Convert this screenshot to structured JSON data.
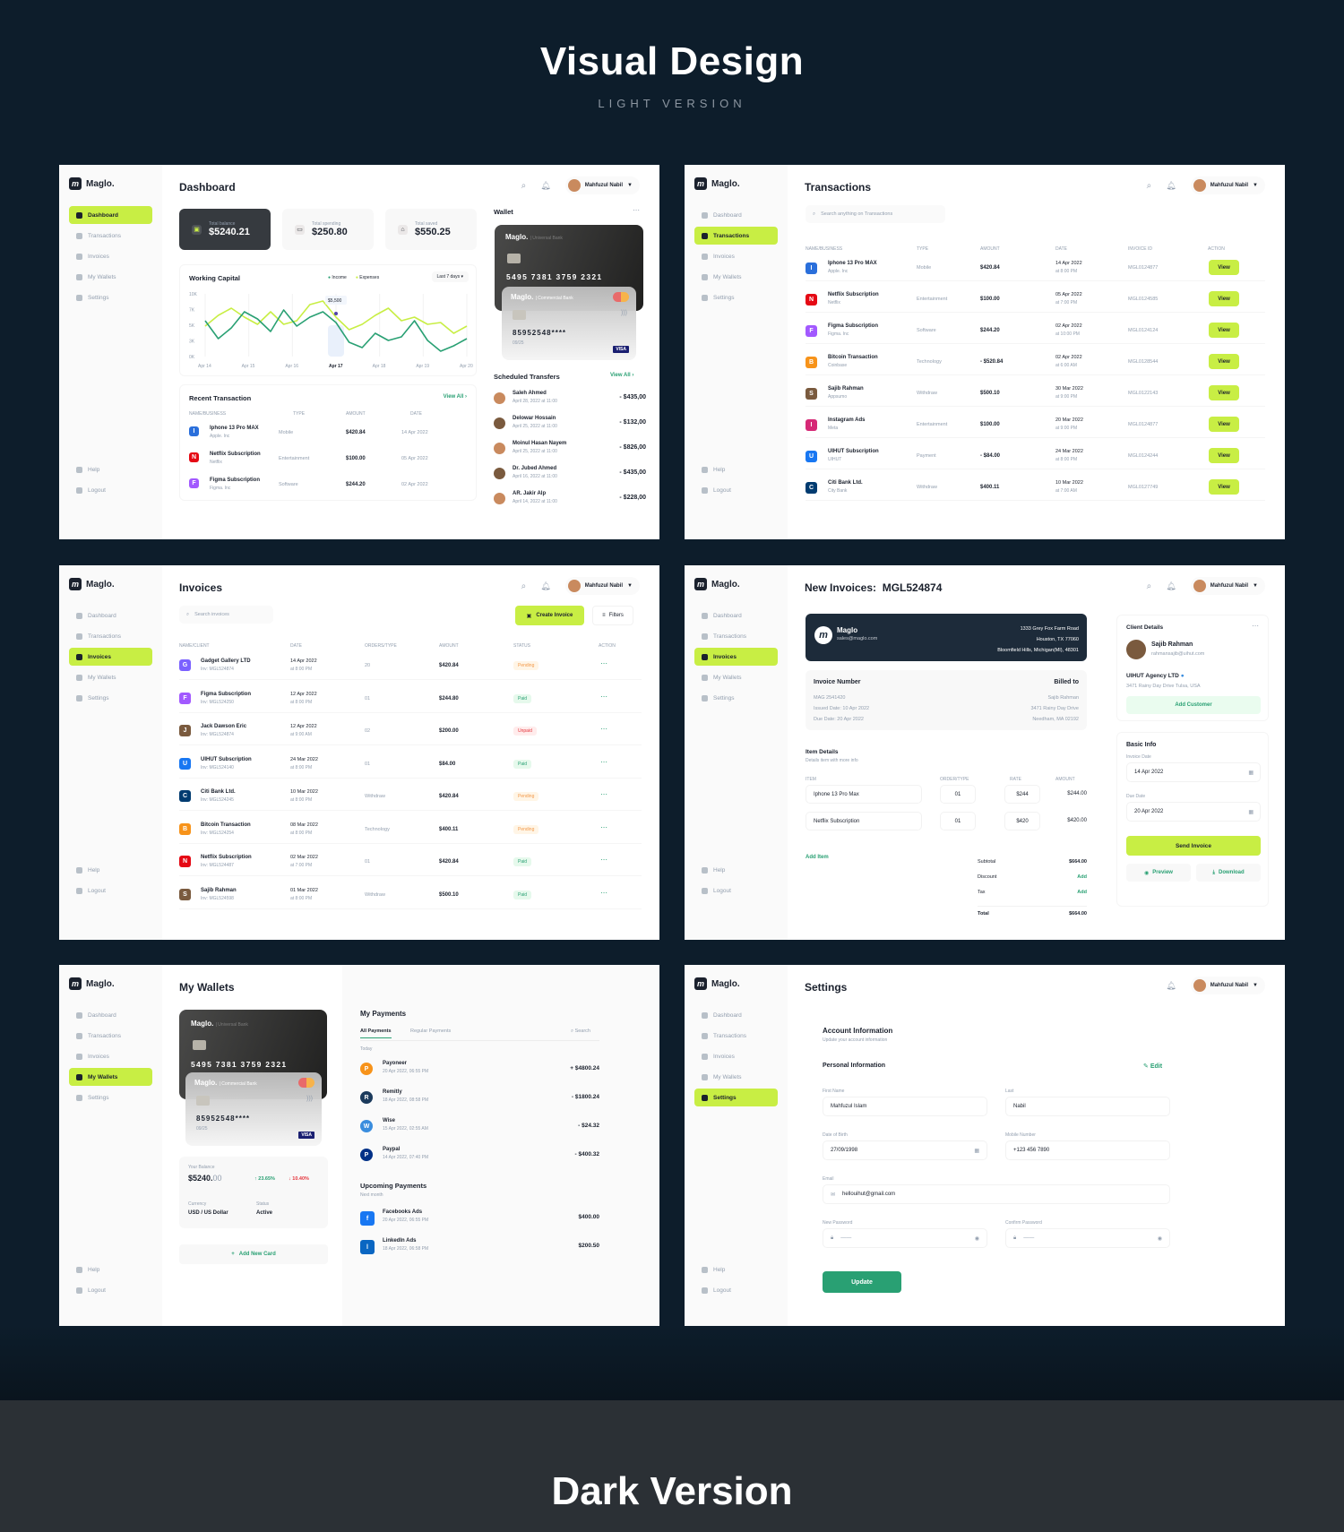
{
  "hero": {
    "title": "Visual Design",
    "subtitle": "LIGHT VERSION",
    "dark_title": "Dark Version"
  },
  "common": {
    "brand": "Maglo.",
    "brand_mark": "m",
    "user": "Mahfuzul Nabil",
    "nav": [
      "Dashboard",
      "Transactions",
      "Invoices",
      "My Wallets",
      "Settings"
    ],
    "help": "Help",
    "logout": "Logout"
  },
  "dashboard": {
    "title": "Dashboard",
    "stats": [
      {
        "label": "Total balance",
        "value": "$5240.21"
      },
      {
        "label": "Total spending",
        "value": "$250.80"
      },
      {
        "label": "Total saved",
        "value": "$550.25"
      }
    ],
    "wc_title": "Working Capital",
    "legend_income": "Income",
    "legend_expenses": "Expenses",
    "range": "Last 7 days",
    "y_ticks": [
      "10K",
      "7K",
      "5K",
      "3K",
      "0K"
    ],
    "x_ticks": [
      "Apr 14",
      "Apr 15",
      "Apr 16",
      "Apr 17",
      "Apr 18",
      "Apr 19",
      "Apr 20"
    ],
    "tooltip": "$5,500",
    "wallet_title": "Wallet",
    "card1_brand": "Maglo.",
    "card1_bank": "Universal Bank",
    "card1_number": "5495 7381 3759 2321",
    "card2_brand": "Maglo.",
    "card2_bank": "Commercial Bank",
    "card2_number": "85952548****",
    "card2_exp": "09/25",
    "card2_visa": "VISA",
    "recent_title": "Recent Transaction",
    "view_all": "View All",
    "recent_cols": [
      "NAME/BUSINESS",
      "TYPE",
      "AMOUNT",
      "DATE"
    ],
    "recent": [
      {
        "name": "Iphone 13 Pro MAX",
        "sub": "Apple. Inc",
        "type": "Mobile",
        "amount": "$420.84",
        "date": "14 Apr 2022"
      },
      {
        "name": "Netflix Subscription",
        "sub": "Netflix",
        "type": "Entertainment",
        "amount": "$100.00",
        "date": "05 Apr 2022"
      },
      {
        "name": "Figma Subscription",
        "sub": "Figma. Inc",
        "type": "Software",
        "amount": "$244.20",
        "date": "02 Apr 2022"
      }
    ],
    "sched_title": "Scheduled Transfers",
    "sched_view": "View All",
    "sched": [
      {
        "name": "Saleh Ahmed",
        "date": "April 28, 2022 at 11:00",
        "amount": "- $435,00"
      },
      {
        "name": "Delowar Hossain",
        "date": "April 25, 2022 at 11:00",
        "amount": "- $132,00"
      },
      {
        "name": "Moinul Hasan Nayem",
        "date": "April 25, 2022 at 11:00",
        "amount": "- $826,00"
      },
      {
        "name": "Dr. Jubed Ahmed",
        "date": "April 16, 2022 at 11:00",
        "amount": "- $435,00"
      },
      {
        "name": "AR. Jakir Alp",
        "date": "April 14, 2022 at 11:00",
        "amount": "- $228,00"
      }
    ]
  },
  "transactions": {
    "title": "Transactions",
    "search_placeholder": "Search anything on Transactions",
    "cols": [
      "NAME/BUSINESS",
      "TYPE",
      "AMOUNT",
      "DATE",
      "INVOICE ID",
      "ACTION"
    ],
    "view": "View",
    "rows": [
      {
        "name": "Iphone 13 Pro MAX",
        "sub": "Apple. Inc",
        "type": "Mobile",
        "amount": "$420.84",
        "date": "14 Apr 2022",
        "time": "at 8:00 PM",
        "id": "MGL0124877"
      },
      {
        "name": "Netflix Subscription",
        "sub": "Netflix",
        "type": "Entertainment",
        "amount": "$100.00",
        "date": "05 Apr 2022",
        "time": "at 7:00 PM",
        "id": "MGL0124585"
      },
      {
        "name": "Figma Subscription",
        "sub": "Figma. Inc",
        "type": "Software",
        "amount": "$244.20",
        "date": "02 Apr 2022",
        "time": "at 10:00 PM",
        "id": "MGL0124124"
      },
      {
        "name": "Bitcoin Transaction",
        "sub": "Coinbase",
        "type": "Technology",
        "amount": "- $520.84",
        "date": "02 Apr 2022",
        "time": "at 6:00 AM",
        "id": "MGL0128544"
      },
      {
        "name": "Sajib Rahman",
        "sub": "Appsumo",
        "type": "Withdraw",
        "amount": "$500.10",
        "date": "30 Mar 2022",
        "time": "at 9:00 PM",
        "id": "MGL0122143"
      },
      {
        "name": "Instagram Ads",
        "sub": "Meta",
        "type": "Entertainment",
        "amount": "$100.00",
        "date": "20 Mar 2022",
        "time": "at 9:00 PM",
        "id": "MGL0124877"
      },
      {
        "name": "UIHUT Subscription",
        "sub": "UIHUT",
        "type": "Payment",
        "amount": "- $84.00",
        "date": "24 Mar 2022",
        "time": "at 8:00 PM",
        "id": "MGL0124244"
      },
      {
        "name": "Citi Bank Ltd.",
        "sub": "City Bank",
        "type": "Withdraw",
        "amount": "$400.11",
        "date": "10 Mar 2022",
        "time": "at 7:00 AM",
        "id": "MGL0127749"
      }
    ]
  },
  "invoices": {
    "title": "Invoices",
    "search_placeholder": "Search invoices",
    "create": "Create Invoice",
    "filters": "Filters",
    "cols": [
      "NAME/CLIENT",
      "DATE",
      "ORDERS/TYPE",
      "AMOUNT",
      "STATUS",
      "ACTION"
    ],
    "rows": [
      {
        "name": "Gadget Gallery LTD",
        "inv": "Inv: MGL524874",
        "date": "14 Apr 2022",
        "time": "at 8:00 PM",
        "order": "20",
        "amount": "$420.84",
        "status": "Pending"
      },
      {
        "name": "Figma Subscription",
        "inv": "Inv: MGL524250",
        "date": "12 Apr 2022",
        "time": "at 8:00 PM",
        "order": "01",
        "amount": "$244.80",
        "status": "Paid"
      },
      {
        "name": "Jack Dawson Eric",
        "inv": "Inv: MGL524874",
        "date": "12 Apr 2022",
        "time": "at 9:00 AM",
        "order": "02",
        "amount": "$200.00",
        "status": "Unpaid"
      },
      {
        "name": "UIHUT Subscription",
        "inv": "Inv: MGL524140",
        "date": "24 Mar 2022",
        "time": "at 8:00 PM",
        "order": "01",
        "amount": "$84.00",
        "status": "Paid"
      },
      {
        "name": "Citi Bank Ltd.",
        "inv": "Inv: MGL524245",
        "date": "10 Mar 2022",
        "time": "at 8:00 PM",
        "order": "Withdraw",
        "amount": "$420.84",
        "status": "Pending"
      },
      {
        "name": "Bitcoin Transaction",
        "inv": "Inv: MGL524254",
        "date": "08 Mar 2022",
        "time": "at 8:00 PM",
        "order": "Technology",
        "amount": "$400.11",
        "status": "Pending"
      },
      {
        "name": "Netflix Subscription",
        "inv": "Inv: MGL524487",
        "date": "02 Mar 2022",
        "time": "at 7:00 PM",
        "order": "01",
        "amount": "$420.84",
        "status": "Paid"
      },
      {
        "name": "Sajib Rahman",
        "inv": "Inv: MGL524598",
        "date": "01 Mar 2022",
        "time": "at 8:00 PM",
        "order": "Withdraw",
        "amount": "$500.10",
        "status": "Paid"
      }
    ]
  },
  "new_invoice": {
    "title": "New Invoices:",
    "number": "MGL524874",
    "company": "Maglo",
    "email": "sales@maglo.com",
    "addr1": "1333 Grey Fox Farm Road",
    "addr2": "Houston, TX 77060",
    "addr3": "Bloomfield Hills, Michigan(MI), 48301",
    "inv_label": "Invoice Number",
    "inv_no": "MAG 2541420",
    "issued": "Issued Date: 10 Apr 2022",
    "due": "Due Date: 20 Apr 2022",
    "billed": "Billed to",
    "b1": "Sajib Rahman",
    "b2": "3471 Rainy Day Drive",
    "b3": "Needham, MA 02192",
    "items_title": "Item Details",
    "items_sub": "Details item with more info",
    "item_cols": [
      "ITEM",
      "ORDER/TYPE",
      "RATE",
      "AMOUNT"
    ],
    "items": [
      {
        "name": "Iphone 13 Pro Max",
        "qty": "01",
        "rate": "$244",
        "amount": "$244.00"
      },
      {
        "name": "Netflix Subscription",
        "qty": "01",
        "rate": "$420",
        "amount": "$420.00"
      }
    ],
    "add_item": "Add Item",
    "subtotal_l": "Subtotal",
    "subtotal": "$664.00",
    "discount_l": "Discount",
    "tax_l": "Tax",
    "add": "Add",
    "total_l": "Total",
    "total": "$664.00",
    "client_title": "Client Details",
    "client_name": "Sajib Rahman",
    "client_email": "rahmansajib@uihut.com",
    "agency": "UIHUT Agency LTD",
    "agency_addr": "3471 Rainy Day Drive Tulsa, USA",
    "add_customer": "Add Customer",
    "basic_title": "Basic Info",
    "inv_date_l": "Invoice Date",
    "inv_date": "14 Apr 2022",
    "due_l": "Due Date",
    "due_date": "20 Apr 2022",
    "send": "Send Invoice",
    "preview": "Preview",
    "download": "Download"
  },
  "wallets": {
    "title": "My Wallets",
    "balance_l": "Your Balance",
    "balance": "$5240.",
    "balance_dec": "00",
    "up": "23.65%",
    "down": "10.40%",
    "currency_l": "Currency",
    "currency": "USD / US Dollar",
    "status_l": "Status",
    "status": "Active",
    "add_card": "Add New Card",
    "pay_title": "My Payments",
    "tab1": "All Payments",
    "tab2": "Regular Payments",
    "search": "Search",
    "today": "Today",
    "payments": [
      {
        "name": "Payoneer",
        "date": "20 Apr 2022, 06:55 PM",
        "amount": "+ $4800.24"
      },
      {
        "name": "Remitly",
        "date": "18 Apr 2022, 08:58 PM",
        "amount": "- $1800.24"
      },
      {
        "name": "Wise",
        "date": "15 Apr 2022, 02:55 AM",
        "amount": "- $24.32"
      },
      {
        "name": "Paypal",
        "date": "14 Apr 2022, 07:40 PM",
        "amount": "- $400.32"
      }
    ],
    "up_title": "Upcoming Payments",
    "next_month": "Next month",
    "upcoming": [
      {
        "name": "Facebooks Ads",
        "date": "20 Apr 2022, 06:55 PM",
        "amount": "$400.00"
      },
      {
        "name": "LinkedIn Ads",
        "date": "18 Apr 2022, 06:58 PM",
        "amount": "$200.50"
      }
    ]
  },
  "settings": {
    "title": "Settings",
    "acc_title": "Account Information",
    "acc_sub": "Update your account information",
    "pi": "Personal Information",
    "edit": "Edit",
    "first_l": "First Name",
    "first": "Mahfuzul Islam",
    "last_l": "Last",
    "last": "Nabil",
    "dob_l": "Date of Birth",
    "dob": "27/09/1998",
    "mob_l": "Mobile Number",
    "mob": "+123 456 7890",
    "email_l": "Email",
    "email": "hellouihut@gmail.com",
    "np_l": "New Password",
    "cp_l": "Confirm Password",
    "update": "Update"
  },
  "colors": {
    "lime": "#C8EE44",
    "navy": "#0D1D2B",
    "green": "#29A073",
    "income": "#29A073",
    "expenses": "#C8EE44"
  }
}
